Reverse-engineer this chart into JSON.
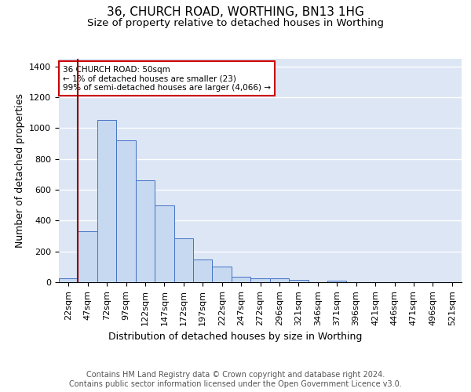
{
  "title1": "36, CHURCH ROAD, WORTHING, BN13 1HG",
  "title2": "Size of property relative to detached houses in Worthing",
  "xlabel": "Distribution of detached houses by size in Worthing",
  "ylabel": "Number of detached properties",
  "categories": [
    "22sqm",
    "47sqm",
    "72sqm",
    "97sqm",
    "122sqm",
    "147sqm",
    "172sqm",
    "197sqm",
    "222sqm",
    "247sqm",
    "272sqm",
    "296sqm",
    "321sqm",
    "346sqm",
    "371sqm",
    "396sqm",
    "421sqm",
    "446sqm",
    "471sqm",
    "496sqm",
    "521sqm"
  ],
  "values": [
    23,
    330,
    1055,
    920,
    660,
    500,
    285,
    150,
    100,
    38,
    25,
    25,
    15,
    0,
    10,
    0,
    0,
    0,
    0,
    0,
    0
  ],
  "bar_color": "#c6d9f0",
  "bar_edge_color": "#4472c4",
  "vline_x": 0.5,
  "vline_color": "#8b0000",
  "annotation_text": "36 CHURCH ROAD: 50sqm\n← 1% of detached houses are smaller (23)\n99% of semi-detached houses are larger (4,066) →",
  "annotation_box_color": "#ffffff",
  "annotation_box_edge": "#cc0000",
  "ylim": [
    0,
    1450
  ],
  "yticks": [
    0,
    200,
    400,
    600,
    800,
    1000,
    1200,
    1400
  ],
  "background_color": "#dce6f5",
  "grid_color": "#ffffff",
  "footer": "Contains HM Land Registry data © Crown copyright and database right 2024.\nContains public sector information licensed under the Open Government Licence v3.0.",
  "title1_fontsize": 11,
  "title2_fontsize": 9.5,
  "xlabel_fontsize": 9,
  "ylabel_fontsize": 9,
  "footer_fontsize": 7,
  "tick_fontsize": 8,
  "annot_fontsize": 7.5
}
